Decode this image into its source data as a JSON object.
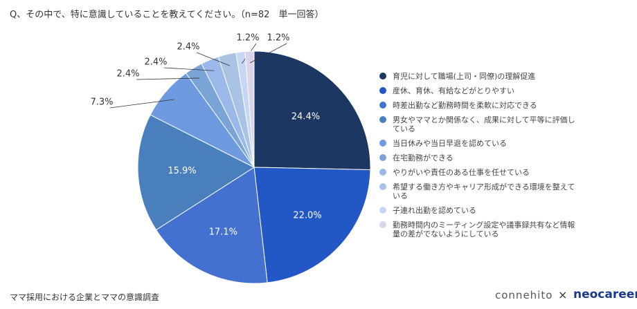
{
  "chart_data": {
    "type": "pie",
    "title": "Q、その中で、特に意識していることを教えてください。（n=82　単一回答）",
    "categories": [
      "育児に対して職場(上司・同僚)の理解促進",
      "産休、育休、有給などがとりやすい",
      "時差出勤など勤務時間を柔軟に対応できる",
      "男女やママとか関係なく、成果に対して平等に評価している",
      "当日休みや当日早退を認めている",
      "在宅勤務ができる",
      "やりがいや責任のある仕事を任せている",
      "希望する働き方やキャリア形成ができる環境を整えている",
      "子連れ出勤を認めている",
      "勤務時間内のミーティング設定や議事録共有など情報量の差がでないようにしている"
    ],
    "values": [
      24.4,
      22.0,
      17.1,
      15.9,
      7.3,
      2.4,
      2.4,
      2.4,
      1.2,
      1.2
    ],
    "value_labels": [
      "24.4%",
      "22.0%",
      "17.1%",
      "15.9%",
      "7.3%",
      "2.4%",
      "2.4%",
      "2.4%",
      "1.2%",
      "1.2%"
    ],
    "colors": [
      "#1c3761",
      "#2457c6",
      "#4471cf",
      "#4a7fbd",
      "#6e9be0",
      "#7ba4d6",
      "#9bb8eb",
      "#a9c3e4",
      "#c5d7f4",
      "#d9d4e8"
    ],
    "legend": "right"
  },
  "footer": "ママ採用における企業とママの意識調査",
  "logos": {
    "left": "connehito",
    "separator": "×",
    "right": "neocareer"
  }
}
